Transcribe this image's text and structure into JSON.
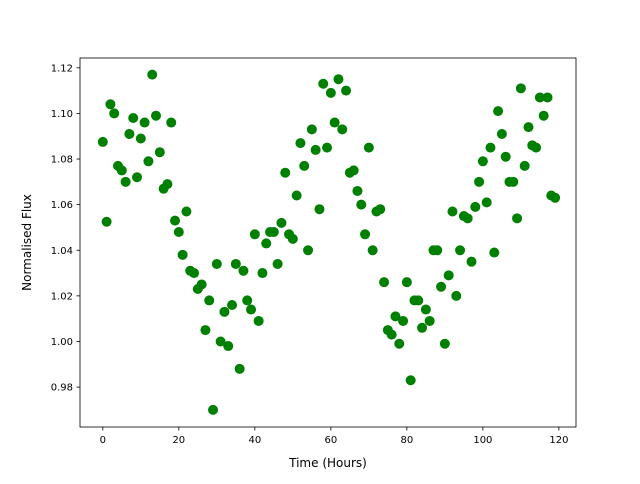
{
  "chart_data": {
    "type": "scatter",
    "title": "",
    "xlabel": "Time (Hours)",
    "ylabel": "Normalised Flux",
    "xlim": [
      -6,
      124.5
    ],
    "ylim": [
      0.9625,
      1.1243
    ],
    "xticks": [
      0,
      20,
      40,
      60,
      80,
      100,
      120
    ],
    "xtick_labels": [
      "0",
      "20",
      "40",
      "60",
      "80",
      "100",
      "120"
    ],
    "yticks": [
      0.98,
      1.0,
      1.02,
      1.04,
      1.06,
      1.08,
      1.1,
      1.12
    ],
    "ytick_labels": [
      "0.98",
      "1.00",
      "1.02",
      "1.04",
      "1.06",
      "1.08",
      "1.10",
      "1.12"
    ],
    "grid": false,
    "marker_color": "#008000",
    "x": [
      0,
      1,
      2,
      3,
      4,
      5,
      6,
      7,
      8,
      9,
      10,
      11,
      12,
      13,
      14,
      15,
      16,
      17,
      18,
      19,
      20,
      21,
      22,
      23,
      24,
      25,
      26,
      27,
      28,
      29,
      30,
      31,
      32,
      33,
      34,
      35,
      36,
      37,
      38,
      39,
      40,
      41,
      42,
      43,
      44,
      45,
      46,
      47,
      48,
      49,
      50,
      51,
      52,
      53,
      54,
      55,
      56,
      57,
      58,
      59,
      60,
      61,
      62,
      63,
      64,
      65,
      66,
      67,
      68,
      69,
      70,
      71,
      72,
      73,
      74,
      75,
      76,
      77,
      78,
      79,
      80,
      81,
      82,
      83,
      84,
      85,
      86,
      87,
      88,
      89,
      90,
      91,
      92,
      93,
      94,
      95,
      96,
      97,
      98,
      99,
      100,
      101,
      102,
      103,
      104,
      105,
      106,
      107,
      108,
      109,
      110,
      111,
      112,
      113,
      114,
      115,
      116,
      117,
      118,
      119
    ],
    "y": [
      1.0875,
      1.0525,
      1.104,
      1.1,
      1.077,
      1.075,
      1.07,
      1.091,
      1.098,
      1.072,
      1.089,
      1.096,
      1.079,
      1.117,
      1.099,
      1.083,
      1.067,
      1.069,
      1.096,
      1.053,
      1.048,
      1.038,
      1.057,
      1.031,
      1.03,
      1.023,
      1.025,
      1.005,
      1.018,
      0.97,
      1.034,
      1.0,
      1.013,
      0.998,
      1.016,
      1.034,
      0.988,
      1.031,
      1.018,
      1.014,
      1.047,
      1.009,
      1.03,
      1.043,
      1.048,
      1.048,
      1.034,
      1.052,
      1.074,
      1.047,
      1.045,
      1.064,
      1.087,
      1.077,
      1.04,
      1.093,
      1.084,
      1.058,
      1.113,
      1.085,
      1.109,
      1.096,
      1.115,
      1.093,
      1.11,
      1.074,
      1.075,
      1.066,
      1.06,
      1.047,
      1.085,
      1.04,
      1.057,
      1.058,
      1.026,
      1.005,
      1.003,
      1.011,
      0.999,
      1.009,
      1.026,
      0.983,
      1.018,
      1.018,
      1.006,
      1.014,
      1.009,
      1.04,
      1.04,
      1.024,
      0.999,
      1.029,
      1.057,
      1.02,
      1.04,
      1.055,
      1.054,
      1.035,
      1.059,
      1.07,
      1.079,
      1.061,
      1.085,
      1.039,
      1.101,
      1.091,
      1.081,
      1.07,
      1.07,
      1.054,
      1.111,
      1.077,
      1.094,
      1.086,
      1.085,
      1.107,
      1.099,
      1.107,
      1.064,
      1.063
    ]
  }
}
